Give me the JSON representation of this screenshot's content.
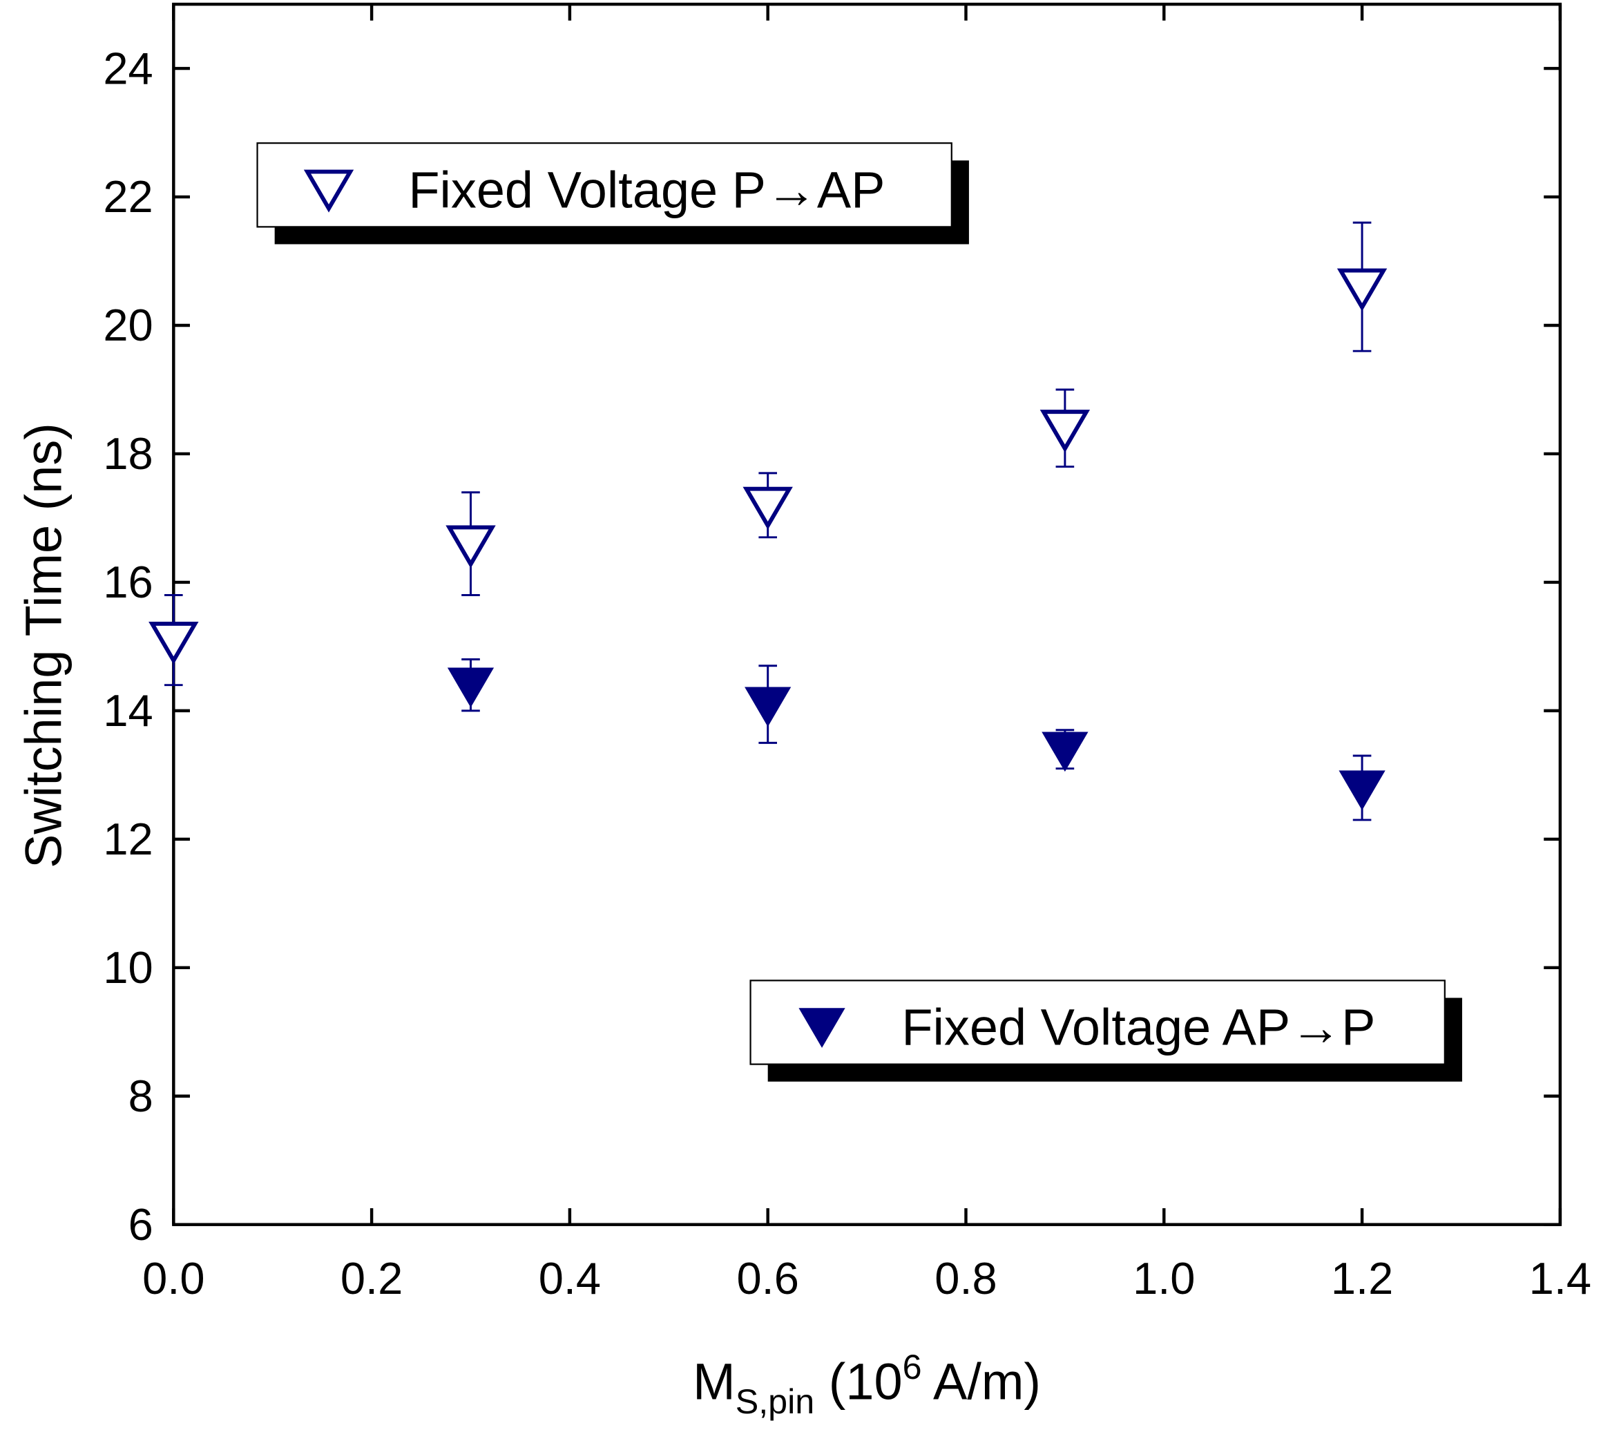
{
  "chart_data": {
    "type": "scatter",
    "x_label": {
      "main": "M",
      "sub": "S,pin",
      "mid": " (10",
      "sup": "6",
      "end": " A/m)"
    },
    "y_label": "Switching Time (ns)",
    "xlim": [
      0,
      1.4
    ],
    "ylim": [
      6,
      25
    ],
    "xticks": [
      {
        "value": 0,
        "label": "0.0"
      },
      0.2,
      0.4,
      0.6,
      0.8,
      {
        "value": 1,
        "label": "1.0"
      },
      1.2,
      1.4
    ],
    "yticks": [
      6,
      8,
      10,
      12,
      14,
      16,
      18,
      20,
      22,
      24
    ],
    "series": [
      {
        "name": "Fixed Voltage P→AP",
        "color": "#000080",
        "marker": "open-triangle-down",
        "x": [
          0,
          0.3,
          0.6,
          0.9,
          1.2
        ],
        "values": [
          15.1,
          16.6,
          17.2,
          18.4,
          20.6
        ],
        "errors": [
          0.7,
          0.8,
          0.5,
          0.6,
          1.0
        ]
      },
      {
        "name": "Fixed Voltage AP→P",
        "color": "#000080",
        "marker": "filled-triangle-down",
        "x": [
          0.3,
          0.6,
          0.9,
          1.2
        ],
        "values": [
          14.4,
          14.1,
          13.4,
          12.8
        ],
        "errors": [
          0.4,
          0.6,
          0.3,
          0.5
        ]
      }
    ]
  }
}
